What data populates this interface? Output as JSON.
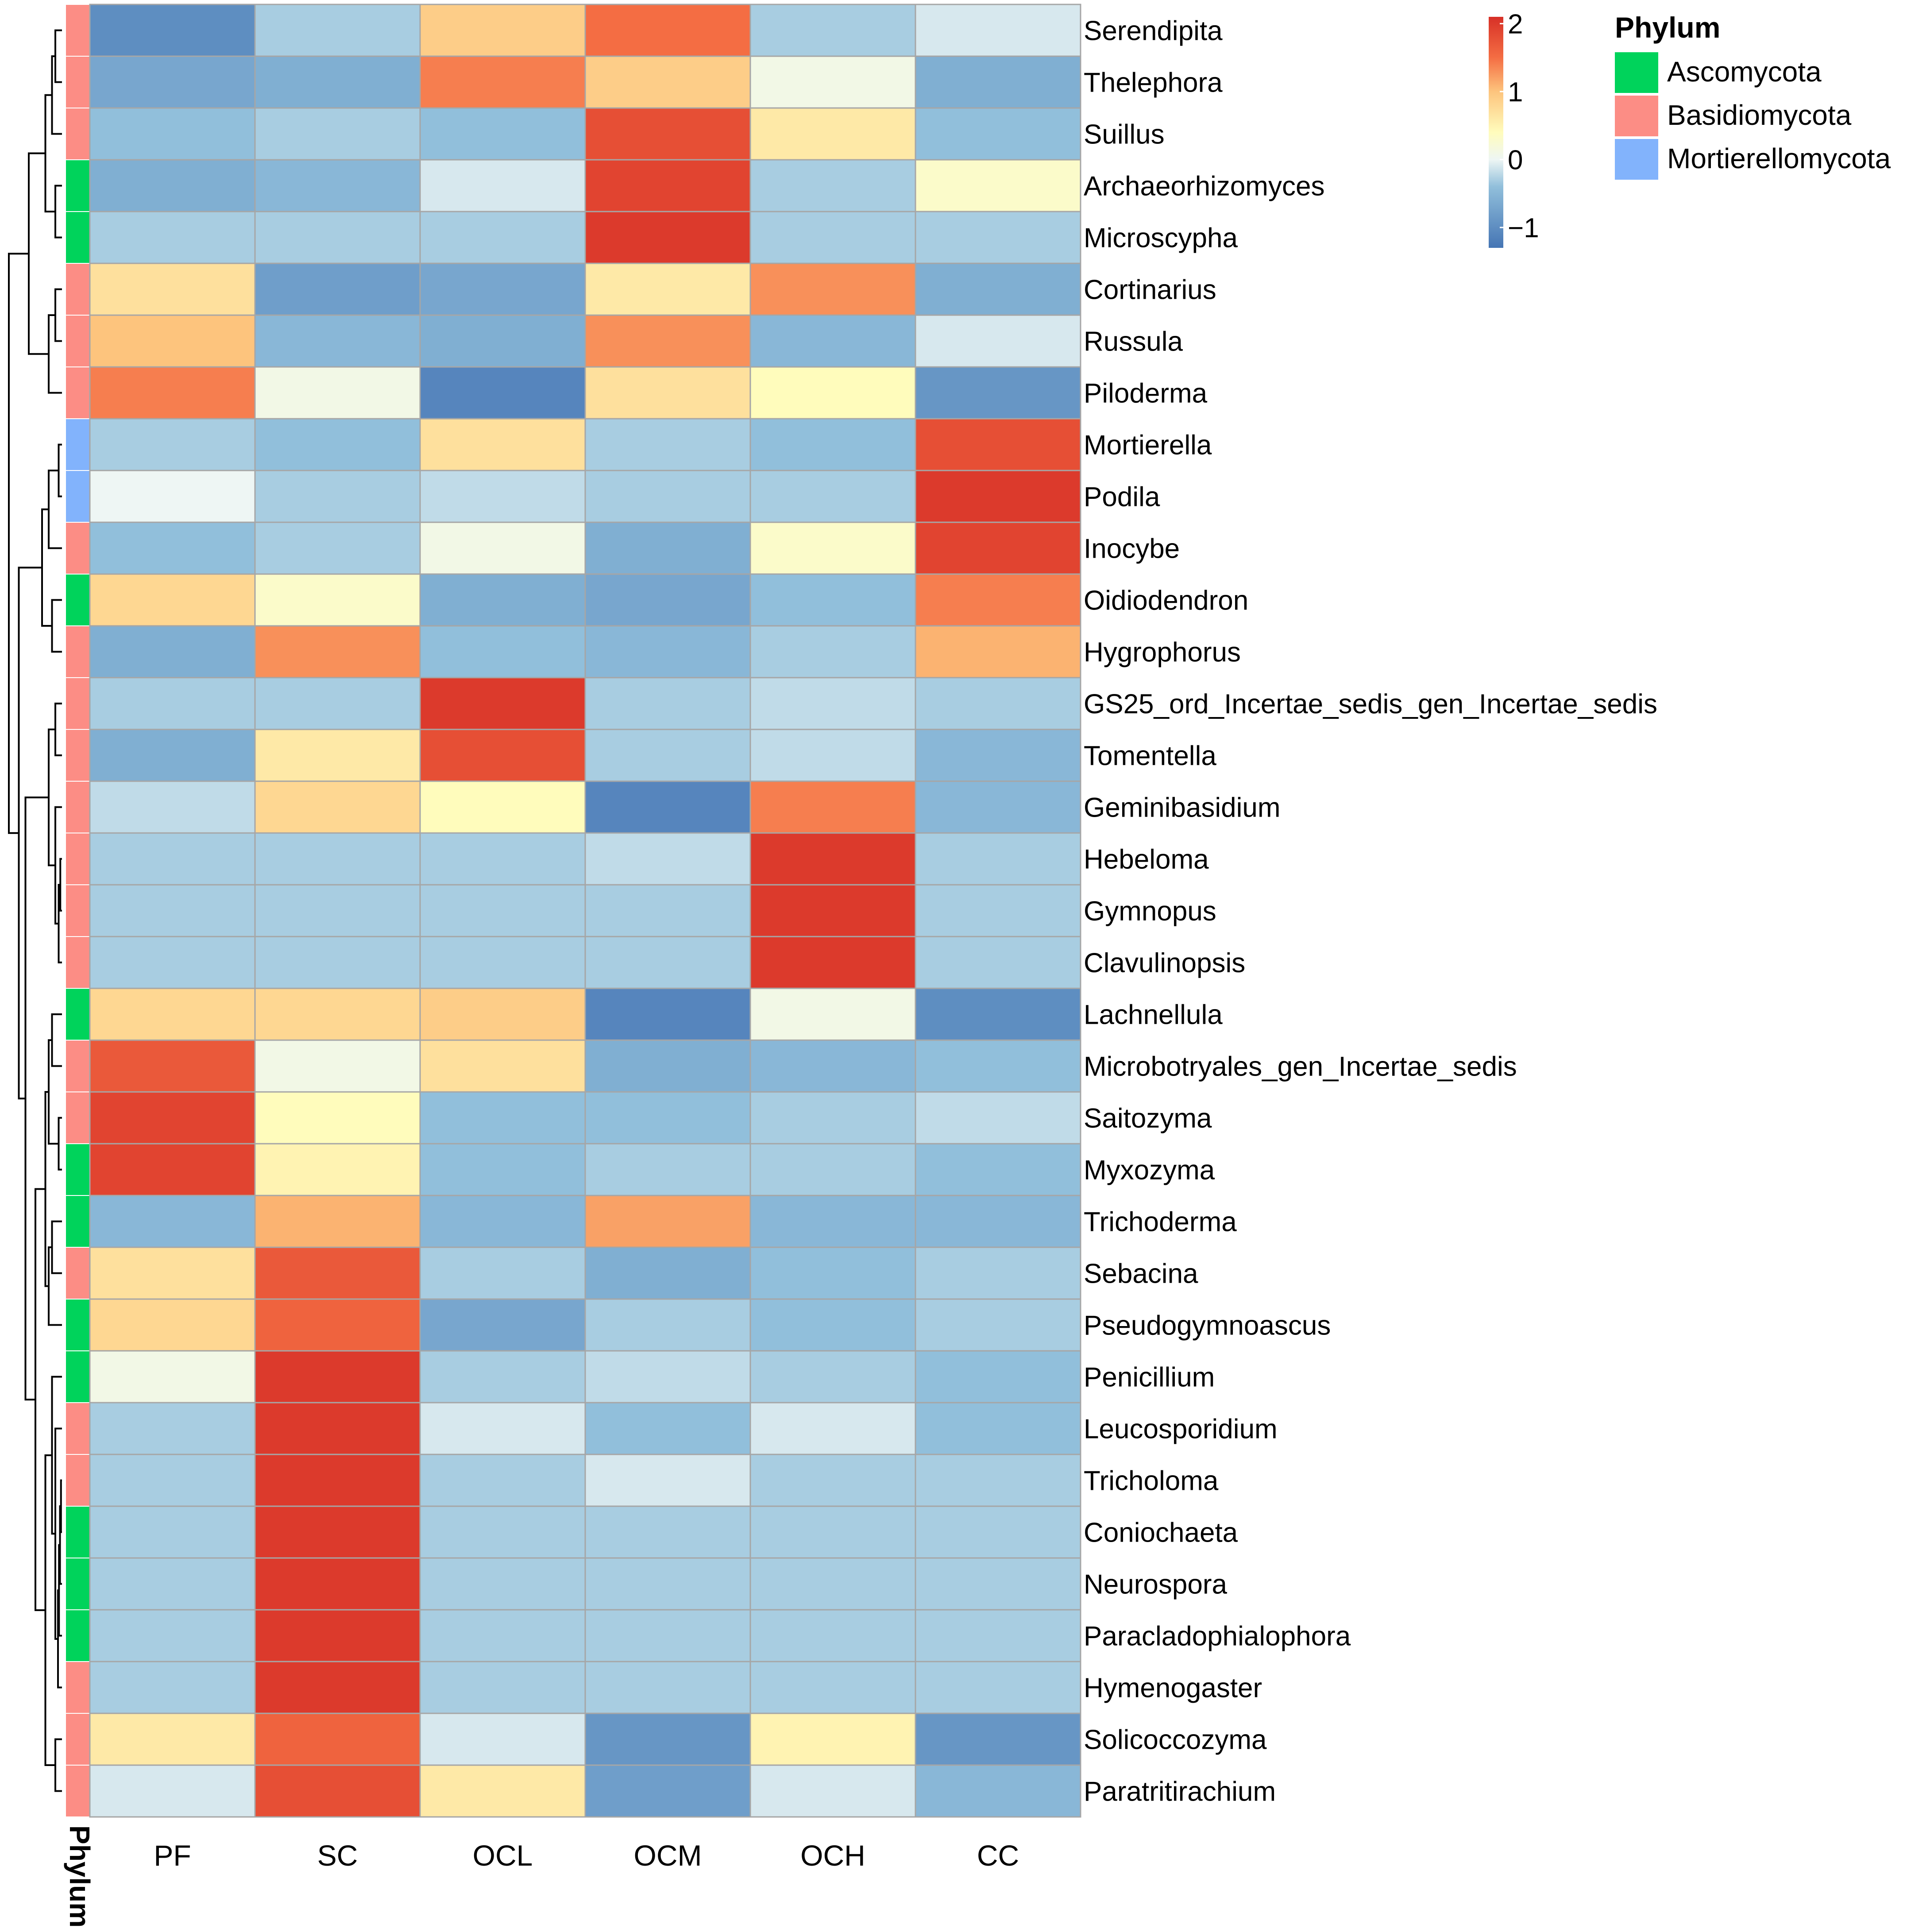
{
  "chart_data": {
    "type": "heatmap",
    "title": "",
    "columns": [
      "PF",
      "SC",
      "OCL",
      "OCM",
      "OCH",
      "CC"
    ],
    "rows": [
      {
        "genus": "Serendipita",
        "phylum": "Basidiomycota",
        "values": [
          -1.0,
          -0.3,
          0.9,
          1.5,
          -0.3,
          -0.1
        ]
      },
      {
        "genus": "Thelephora",
        "phylum": "Basidiomycota",
        "values": [
          -0.7,
          -0.6,
          1.4,
          0.9,
          0.1,
          -0.6
        ]
      },
      {
        "genus": "Suillus",
        "phylum": "Basidiomycota",
        "values": [
          -0.4,
          -0.3,
          -0.4,
          1.8,
          0.6,
          -0.4
        ]
      },
      {
        "genus": "Archaeorhizomyces",
        "phylum": "Ascomycota",
        "values": [
          -0.6,
          -0.5,
          -0.1,
          1.9,
          -0.3,
          0.3
        ]
      },
      {
        "genus": "Microscypha",
        "phylum": "Ascomycota",
        "values": [
          -0.3,
          -0.3,
          -0.3,
          2.0,
          -0.3,
          -0.3
        ]
      },
      {
        "genus": "Cortinarius",
        "phylum": "Basidiomycota",
        "values": [
          0.7,
          -0.8,
          -0.7,
          0.6,
          1.3,
          -0.6
        ]
      },
      {
        "genus": "Russula",
        "phylum": "Basidiomycota",
        "values": [
          1.0,
          -0.5,
          -0.6,
          1.3,
          -0.5,
          -0.1
        ]
      },
      {
        "genus": "Piloderma",
        "phylum": "Basidiomycota",
        "values": [
          1.4,
          0.1,
          -1.1,
          0.7,
          0.4,
          -0.9
        ]
      },
      {
        "genus": "Mortierella",
        "phylum": "Mortierellomycota",
        "values": [
          -0.3,
          -0.4,
          0.7,
          -0.3,
          -0.4,
          1.8
        ]
      },
      {
        "genus": "Podila",
        "phylum": "Mortierellomycota",
        "values": [
          0.0,
          -0.3,
          -0.2,
          -0.3,
          -0.3,
          2.0
        ]
      },
      {
        "genus": "Inocybe",
        "phylum": "Basidiomycota",
        "values": [
          -0.4,
          -0.3,
          0.1,
          -0.6,
          0.3,
          1.9
        ]
      },
      {
        "genus": "Oidiodendron",
        "phylum": "Ascomycota",
        "values": [
          0.8,
          0.3,
          -0.6,
          -0.7,
          -0.4,
          1.4
        ]
      },
      {
        "genus": "Hygrophorus",
        "phylum": "Basidiomycota",
        "values": [
          -0.6,
          1.3,
          -0.4,
          -0.5,
          -0.3,
          1.1
        ]
      },
      {
        "genus": "GS25_ord_Incertae_sedis_gen_Incertae_sedis",
        "phylum": "Basidiomycota",
        "values": [
          -0.3,
          -0.3,
          2.0,
          -0.3,
          -0.2,
          -0.3
        ]
      },
      {
        "genus": "Tomentella",
        "phylum": "Basidiomycota",
        "values": [
          -0.6,
          0.6,
          1.8,
          -0.3,
          -0.2,
          -0.5
        ]
      },
      {
        "genus": "Geminibasidium",
        "phylum": "Basidiomycota",
        "values": [
          -0.2,
          0.8,
          0.4,
          -1.1,
          1.4,
          -0.5
        ]
      },
      {
        "genus": "Hebeloma",
        "phylum": "Basidiomycota",
        "values": [
          -0.3,
          -0.3,
          -0.3,
          -0.2,
          2.0,
          -0.3
        ]
      },
      {
        "genus": "Gymnopus",
        "phylum": "Basidiomycota",
        "values": [
          -0.3,
          -0.3,
          -0.3,
          -0.3,
          2.0,
          -0.3
        ]
      },
      {
        "genus": "Clavulinopsis",
        "phylum": "Basidiomycota",
        "values": [
          -0.3,
          -0.3,
          -0.3,
          -0.3,
          2.0,
          -0.3
        ]
      },
      {
        "genus": "Lachnellula",
        "phylum": "Ascomycota",
        "values": [
          0.8,
          0.8,
          0.9,
          -1.1,
          0.1,
          -1.0
        ]
      },
      {
        "genus": "Microbotryales_gen_Incertae_sedis",
        "phylum": "Basidiomycota",
        "values": [
          1.7,
          0.1,
          0.7,
          -0.6,
          -0.5,
          -0.4
        ]
      },
      {
        "genus": "Saitozyma",
        "phylum": "Basidiomycota",
        "values": [
          1.9,
          0.4,
          -0.4,
          -0.4,
          -0.3,
          -0.2
        ]
      },
      {
        "genus": "Myxozyma",
        "phylum": "Ascomycota",
        "values": [
          1.9,
          0.5,
          -0.4,
          -0.3,
          -0.3,
          -0.4
        ]
      },
      {
        "genus": "Trichoderma",
        "phylum": "Ascomycota",
        "values": [
          -0.5,
          1.1,
          -0.5,
          1.2,
          -0.5,
          -0.5
        ]
      },
      {
        "genus": "Sebacina",
        "phylum": "Basidiomycota",
        "values": [
          0.7,
          1.7,
          -0.3,
          -0.6,
          -0.4,
          -0.3
        ]
      },
      {
        "genus": "Pseudogymnoascus",
        "phylum": "Ascomycota",
        "values": [
          0.8,
          1.6,
          -0.7,
          -0.3,
          -0.4,
          -0.3
        ]
      },
      {
        "genus": "Penicillium",
        "phylum": "Ascomycota",
        "values": [
          0.1,
          2.0,
          -0.3,
          -0.2,
          -0.3,
          -0.4
        ]
      },
      {
        "genus": "Leucosporidium",
        "phylum": "Basidiomycota",
        "values": [
          -0.3,
          2.0,
          -0.1,
          -0.4,
          -0.1,
          -0.4
        ]
      },
      {
        "genus": "Tricholoma",
        "phylum": "Basidiomycota",
        "values": [
          -0.3,
          2.0,
          -0.3,
          -0.1,
          -0.3,
          -0.3
        ]
      },
      {
        "genus": "Coniochaeta",
        "phylum": "Ascomycota",
        "values": [
          -0.3,
          2.0,
          -0.3,
          -0.3,
          -0.3,
          -0.3
        ]
      },
      {
        "genus": "Neurospora",
        "phylum": "Ascomycota",
        "values": [
          -0.3,
          2.0,
          -0.3,
          -0.3,
          -0.3,
          -0.3
        ]
      },
      {
        "genus": "Paracladophialophora",
        "phylum": "Ascomycota",
        "values": [
          -0.3,
          2.0,
          -0.3,
          -0.3,
          -0.3,
          -0.3
        ]
      },
      {
        "genus": "Hymenogaster",
        "phylum": "Basidiomycota",
        "values": [
          -0.3,
          2.0,
          -0.3,
          -0.3,
          -0.3,
          -0.3
        ]
      },
      {
        "genus": "Solicoccozyma",
        "phylum": "Basidiomycota",
        "values": [
          0.6,
          1.6,
          -0.1,
          -0.9,
          0.5,
          -0.9
        ]
      },
      {
        "genus": "Paratritirachium",
        "phylum": "Basidiomycota",
        "values": [
          -0.1,
          1.8,
          0.6,
          -0.8,
          -0.1,
          -0.5
        ]
      }
    ],
    "color_scale": {
      "range": [
        -1.3,
        2.1
      ],
      "ticks": [
        2,
        1,
        0,
        -1
      ],
      "tick_labels": [
        "2",
        "1",
        "0",
        "−1"
      ],
      "stops": [
        {
          "value": -1.3,
          "color": "#4575b4"
        },
        {
          "value": -0.4,
          "color": "#91bfdb"
        },
        {
          "value": 0.0,
          "color": "#eef6f4"
        },
        {
          "value": 0.4,
          "color": "#fffcbc"
        },
        {
          "value": 1.0,
          "color": "#fdc47d"
        },
        {
          "value": 1.5,
          "color": "#f46d43"
        },
        {
          "value": 2.1,
          "color": "#d73027"
        }
      ]
    },
    "annotation": {
      "axis_label": "Phylum",
      "legend_title": "Phylum",
      "categories": [
        {
          "name": "Ascomycota",
          "color": "#00d35b"
        },
        {
          "name": "Basidiomycota",
          "color": "#fc8d85"
        },
        {
          "name": "Mortierellomycota",
          "color": "#82b3fc"
        }
      ]
    },
    "dendrogram": "row clustering shown on left",
    "legend_position": "top-right"
  }
}
